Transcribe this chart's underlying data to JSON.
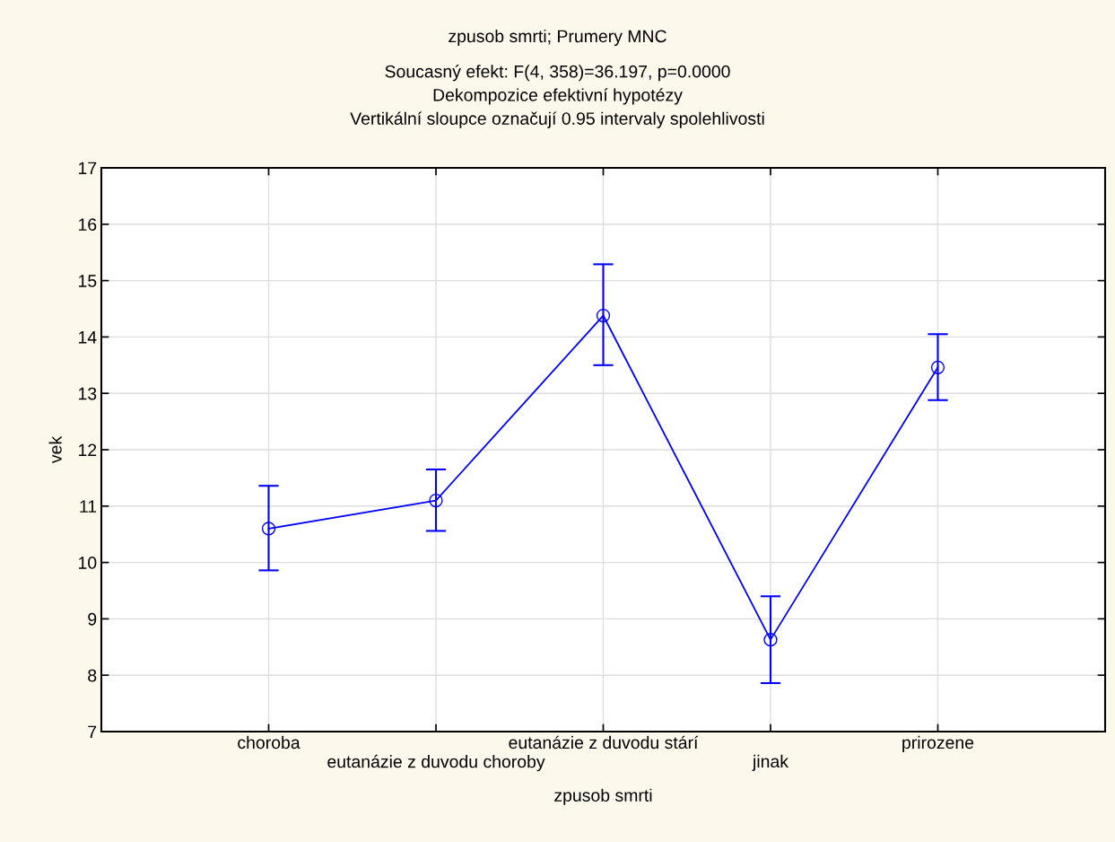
{
  "chart_data": {
    "type": "line",
    "title": "zpusob smrti; Prumery MNC",
    "subtitle": "Soucasný efekt: F(4, 358)=36.197, p=0.0000\nDekompozice efektivní hypotézy\nVertikální sloupce označují 0.95 intervaly spolehlivosti",
    "xlabel": "zpusob smrti",
    "ylabel": "vek",
    "categories": [
      "choroba",
      "eutanázie z duvodu choroby",
      "eutanázie z duvodu stárí",
      "jinak",
      "prirozene"
    ],
    "series": [
      {
        "color": "#0000ff",
        "values": [
          10.6,
          11.1,
          14.38,
          8.63,
          13.46
        ],
        "errors": [
          [
            9.86,
            11.36
          ],
          [
            10.56,
            11.65
          ],
          [
            13.5,
            15.29
          ],
          [
            7.86,
            9.4
          ],
          [
            12.88,
            14.05
          ]
        ]
      }
    ],
    "ylim": [
      7,
      17
    ],
    "yticks": [
      7,
      8,
      9,
      10,
      11,
      12,
      13,
      14,
      15,
      16,
      17
    ],
    "grid": true,
    "marker": "circle",
    "line_style": "solid"
  }
}
